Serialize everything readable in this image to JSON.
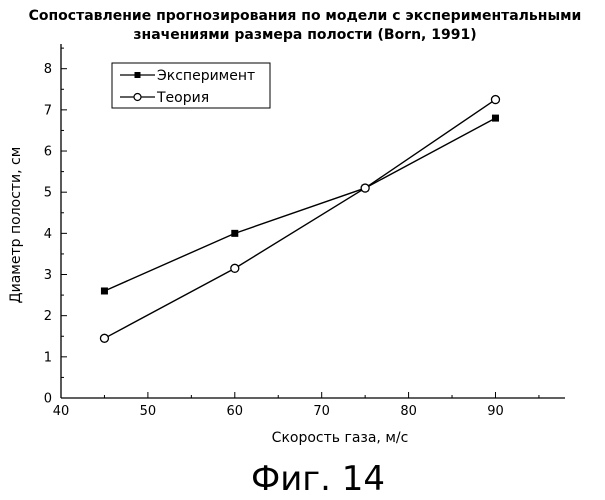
{
  "chart_data": {
    "type": "line",
    "title_lines": [
      "Сопоставление прогнозирования по модели с экспериментальными",
      "значениями размера полости (Born, 1991)"
    ],
    "xlabel": "Скорость газа, м/с",
    "ylabel": "Диаметр полости, см",
    "xlim": [
      40,
      98
    ],
    "ylim": [
      0,
      8.6
    ],
    "x_ticks": [
      40,
      50,
      60,
      70,
      80,
      90
    ],
    "y_ticks": [
      0,
      1,
      2,
      3,
      4,
      5,
      6,
      7,
      8
    ],
    "grid": false,
    "legend_position": "top-left",
    "series": [
      {
        "name": "Эксперимент",
        "marker": "filled-square",
        "points": [
          {
            "x": 45,
            "y": 2.6
          },
          {
            "x": 60,
            "y": 4.0
          },
          {
            "x": 75,
            "y": 5.1
          },
          {
            "x": 90,
            "y": 6.8
          }
        ]
      },
      {
        "name": "Теория",
        "marker": "open-circle",
        "points": [
          {
            "x": 45,
            "y": 1.45
          },
          {
            "x": 60,
            "y": 3.15
          },
          {
            "x": 75,
            "y": 5.1
          },
          {
            "x": 90,
            "y": 7.25
          }
        ]
      }
    ]
  },
  "caption": "Фиг. 14"
}
